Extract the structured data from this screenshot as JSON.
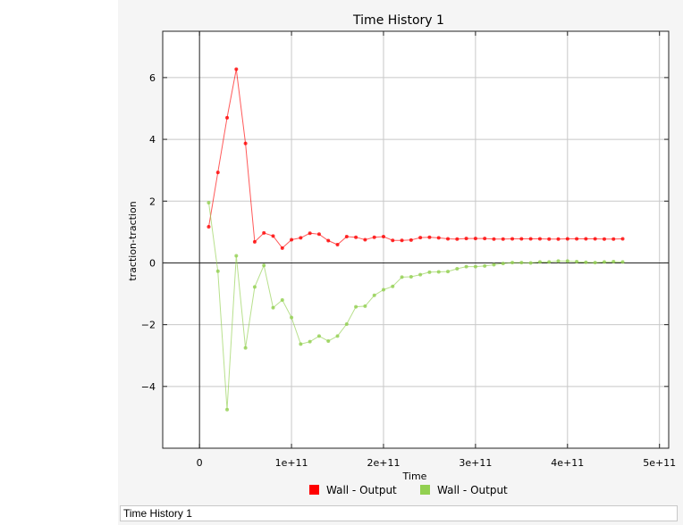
{
  "footer": {
    "label": "Time History 1"
  },
  "chart_data": {
    "type": "line",
    "title": "Time History 1",
    "xlabel": "Time",
    "ylabel": "traction-traction",
    "xlim": [
      -40000000000,
      510000000000
    ],
    "ylim": [
      -6,
      7.5
    ],
    "x_ticks": [
      0,
      100000000000,
      200000000000,
      300000000000,
      400000000000,
      500000000000
    ],
    "x_tick_labels": [
      "0",
      "1e+11",
      "2e+11",
      "3e+11",
      "4e+11",
      "5e+11"
    ],
    "y_ticks": [
      -4,
      -2,
      0,
      2,
      4,
      6
    ],
    "y_tick_labels": [
      "−4",
      "−2",
      "0",
      "2",
      "4",
      "6"
    ],
    "grid": true,
    "legend_position": "bottom",
    "x": [
      10000000000,
      20000000000,
      30000000000,
      40000000000,
      50000000000,
      60000000000,
      70000000000,
      80000000000,
      90000000000,
      100000000000,
      110000000000,
      120000000000,
      130000000000,
      140000000000,
      150000000000,
      160000000000,
      170000000000,
      180000000000,
      190000000000,
      200000000000,
      210000000000,
      220000000000,
      230000000000,
      240000000000,
      250000000000,
      260000000000,
      270000000000,
      280000000000,
      290000000000,
      300000000000,
      310000000000,
      320000000000,
      330000000000,
      340000000000,
      350000000000,
      360000000000,
      370000000000,
      380000000000,
      390000000000,
      400000000000,
      410000000000,
      420000000000,
      430000000000,
      440000000000,
      450000000000,
      460000000000
    ],
    "series": [
      {
        "name": "Wall - Output",
        "color": "#ff0000",
        "values": [
          1.17,
          2.93,
          4.7,
          6.27,
          3.87,
          0.68,
          0.97,
          0.87,
          0.48,
          0.75,
          0.81,
          0.96,
          0.93,
          0.72,
          0.59,
          0.85,
          0.83,
          0.75,
          0.83,
          0.85,
          0.73,
          0.73,
          0.74,
          0.82,
          0.83,
          0.81,
          0.78,
          0.77,
          0.79,
          0.79,
          0.79,
          0.77,
          0.77,
          0.78,
          0.78,
          0.78,
          0.78,
          0.77,
          0.77,
          0.78,
          0.78,
          0.78,
          0.78,
          0.77,
          0.77,
          0.78
        ]
      },
      {
        "name": "Wall - Output",
        "color": "#92d050",
        "values": [
          1.95,
          -0.27,
          -4.75,
          0.23,
          -2.75,
          -0.78,
          -0.08,
          -1.45,
          -1.2,
          -1.77,
          -2.63,
          -2.55,
          -2.37,
          -2.53,
          -2.37,
          -1.98,
          -1.42,
          -1.4,
          -1.05,
          -0.87,
          -0.76,
          -0.46,
          -0.45,
          -0.38,
          -0.3,
          -0.29,
          -0.28,
          -0.19,
          -0.12,
          -0.12,
          -0.1,
          -0.06,
          -0.02,
          0.01,
          0.01,
          0.0,
          0.03,
          0.03,
          0.06,
          0.06,
          0.04,
          0.02,
          0.01,
          0.03,
          0.04,
          0.03
        ]
      }
    ]
  }
}
